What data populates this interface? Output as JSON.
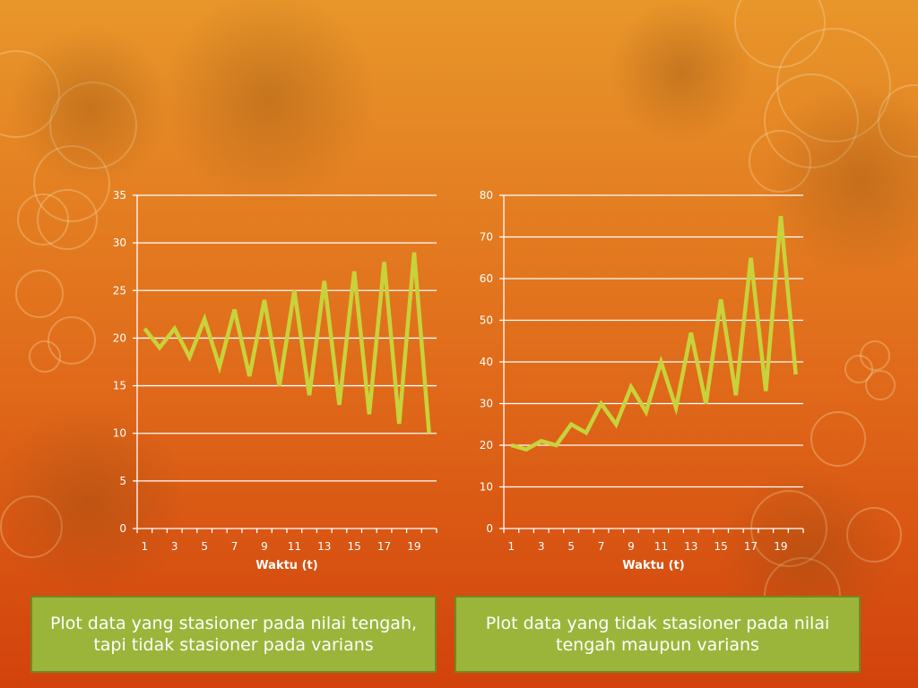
{
  "colors": {
    "background_top": "#e8962a",
    "background_bottom": "#d2420c",
    "line": "#c8d23a",
    "gridline": "#ffffff",
    "axis_text": "#ffffff",
    "caption_fill": "#9bb53a",
    "caption_border": "#6f8a22"
  },
  "chart_data": [
    {
      "type": "line",
      "title": "",
      "xlabel": "Waktu (t)",
      "ylabel": "",
      "x": [
        1,
        2,
        3,
        4,
        5,
        6,
        7,
        8,
        9,
        10,
        11,
        12,
        13,
        14,
        15,
        16,
        17,
        18,
        19,
        20
      ],
      "x_tick_labels": [
        "1",
        "3",
        "5",
        "7",
        "9",
        "11",
        "13",
        "15",
        "17",
        "19"
      ],
      "y_tick_labels": [
        "0",
        "5",
        "10",
        "15",
        "20",
        "25",
        "30",
        "35"
      ],
      "ylim": [
        0,
        35
      ],
      "grid": true,
      "legend": "none",
      "series": [
        {
          "values": [
            21,
            19,
            21,
            18,
            22,
            17,
            23,
            16,
            24,
            15,
            25,
            14,
            26,
            13,
            27,
            12,
            28,
            11,
            29,
            10
          ]
        }
      ]
    },
    {
      "type": "line",
      "title": "",
      "xlabel": "Waktu (t)",
      "ylabel": "",
      "x": [
        1,
        2,
        3,
        4,
        5,
        6,
        7,
        8,
        9,
        10,
        11,
        12,
        13,
        14,
        15,
        16,
        17,
        18,
        19,
        20
      ],
      "x_tick_labels": [
        "1",
        "3",
        "5",
        "7",
        "9",
        "11",
        "13",
        "15",
        "17",
        "19"
      ],
      "y_tick_labels": [
        "0",
        "10",
        "20",
        "30",
        "40",
        "50",
        "60",
        "70",
        "80"
      ],
      "ylim": [
        0,
        80
      ],
      "grid": true,
      "legend": "none",
      "series": [
        {
          "values": [
            20,
            19,
            21,
            20,
            25,
            23,
            30,
            25,
            34,
            28,
            40,
            29,
            47,
            30,
            55,
            32,
            65,
            33,
            75,
            37
          ]
        }
      ]
    }
  ],
  "captions": {
    "left": "Plot data yang stasioner pada nilai tengah, tapi tidak stasioner pada varians",
    "right": "Plot data yang tidak stasioner pada nilai tengah maupun varians"
  }
}
